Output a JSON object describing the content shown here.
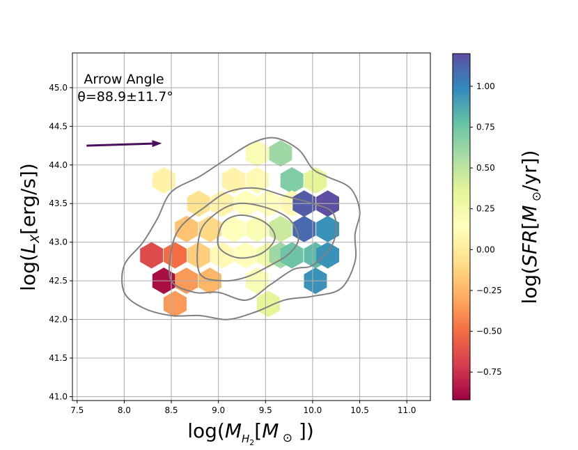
{
  "chart_data": {
    "type": "heatmap",
    "subtype": "hexbin",
    "xlabel": "log(M_{H_2}[M_⊙])",
    "ylabel": "log(L_X[erg/s])",
    "xlim": [
      7.45,
      11.25
    ],
    "ylim": [
      40.95,
      45.45
    ],
    "x_ticks": [
      "7.5",
      "8.0",
      "8.5",
      "9.0",
      "9.5",
      "10.0",
      "10.5",
      "11.0"
    ],
    "y_ticks": [
      "41.0",
      "41.5",
      "42.0",
      "42.5",
      "43.0",
      "43.5",
      "44.0",
      "44.5",
      "45.0"
    ],
    "grid": true,
    "annotation": {
      "line1": "Arrow Angle",
      "line2": "θ=88.9±11.7°"
    },
    "arrow": {
      "from": [
        7.6,
        44.25
      ],
      "to": [
        8.4,
        44.28
      ],
      "color": "#4a0f5c"
    },
    "colorbar": {
      "label": "log(SFR[M_⊙/yr])",
      "min": -0.92,
      "max": 1.2,
      "ticks": [
        "−0.75",
        "−0.50",
        "−0.25",
        "0.00",
        "0.25",
        "0.50",
        "0.75",
        "1.00"
      ],
      "tick_values": [
        -0.75,
        -0.5,
        -0.25,
        0.0,
        0.25,
        0.5,
        0.75,
        1.0
      ],
      "colormap": "Spectral"
    },
    "hex_cells": [
      {
        "x": 8.42,
        "y": 43.8,
        "v": 0.05
      },
      {
        "x": 8.29,
        "y": 42.83,
        "v": -0.65
      },
      {
        "x": 8.42,
        "y": 42.5,
        "v": -0.88
      },
      {
        "x": 8.54,
        "y": 42.83,
        "v": -0.5
      },
      {
        "x": 8.54,
        "y": 42.2,
        "v": -0.35
      },
      {
        "x": 8.66,
        "y": 42.5,
        "v": -0.35
      },
      {
        "x": 8.66,
        "y": 43.17,
        "v": -0.2
      },
      {
        "x": 8.79,
        "y": 42.83,
        "v": -0.15
      },
      {
        "x": 8.79,
        "y": 43.5,
        "v": -0.05
      },
      {
        "x": 8.91,
        "y": 43.17,
        "v": -0.1
      },
      {
        "x": 8.91,
        "y": 42.5,
        "v": -0.25
      },
      {
        "x": 9.04,
        "y": 43.5,
        "v": 0.05
      },
      {
        "x": 9.04,
        "y": 42.83,
        "v": 0.1
      },
      {
        "x": 9.16,
        "y": 43.17,
        "v": 0.15
      },
      {
        "x": 9.16,
        "y": 43.8,
        "v": 0.05
      },
      {
        "x": 9.29,
        "y": 42.83,
        "v": 0.15
      },
      {
        "x": 9.29,
        "y": 43.5,
        "v": 0.15
      },
      {
        "x": 9.41,
        "y": 43.17,
        "v": 0.2
      },
      {
        "x": 9.41,
        "y": 43.8,
        "v": 0.1
      },
      {
        "x": 9.41,
        "y": 42.5,
        "v": 0.2
      },
      {
        "x": 9.53,
        "y": 43.5,
        "v": 0.15
      },
      {
        "x": 9.53,
        "y": 42.83,
        "v": 0.25
      },
      {
        "x": 9.53,
        "y": 42.2,
        "v": 0.35
      },
      {
        "x": 9.41,
        "y": 44.15,
        "v": 0.2
      },
      {
        "x": 9.66,
        "y": 43.17,
        "v": 0.45
      },
      {
        "x": 9.66,
        "y": 42.83,
        "v": 0.6
      },
      {
        "x": 9.66,
        "y": 44.15,
        "v": 0.6
      },
      {
        "x": 9.78,
        "y": 43.8,
        "v": 0.7
      },
      {
        "x": 9.78,
        "y": 42.83,
        "v": 0.75
      },
      {
        "x": 9.78,
        "y": 43.5,
        "v": 0.1
      },
      {
        "x": 9.91,
        "y": 43.5,
        "v": 1.15
      },
      {
        "x": 9.91,
        "y": 43.17,
        "v": 1.1
      },
      {
        "x": 10.03,
        "y": 42.83,
        "v": 0.8
      },
      {
        "x": 10.03,
        "y": 42.5,
        "v": 0.95
      },
      {
        "x": 10.03,
        "y": 43.8,
        "v": 0.35
      },
      {
        "x": 10.16,
        "y": 43.5,
        "v": 1.2
      },
      {
        "x": 10.16,
        "y": 43.17,
        "v": 0.95
      },
      {
        "x": 10.16,
        "y": 42.83,
        "v": 0.95
      }
    ],
    "contours": [
      [
        [
          8.0,
          42.35
        ],
        [
          8.2,
          42.15
        ],
        [
          8.5,
          42.05
        ],
        [
          8.8,
          42.05
        ],
        [
          9.1,
          42.0
        ],
        [
          9.4,
          42.1
        ],
        [
          9.7,
          42.25
        ],
        [
          10.0,
          42.3
        ],
        [
          10.3,
          42.4
        ],
        [
          10.45,
          42.75
        ],
        [
          10.45,
          43.1
        ],
        [
          10.5,
          43.4
        ],
        [
          10.4,
          43.7
        ],
        [
          10.15,
          43.85
        ],
        [
          10.0,
          43.95
        ],
        [
          9.85,
          44.2
        ],
        [
          9.6,
          44.35
        ],
        [
          9.35,
          44.28
        ],
        [
          9.05,
          44.05
        ],
        [
          8.8,
          43.85
        ],
        [
          8.5,
          43.65
        ],
        [
          8.35,
          43.3
        ],
        [
          8.2,
          43.0
        ],
        [
          8.0,
          42.7
        ]
      ],
      [
        [
          8.5,
          42.5
        ],
        [
          8.75,
          42.35
        ],
        [
          9.0,
          42.35
        ],
        [
          9.3,
          42.25
        ],
        [
          9.55,
          42.45
        ],
        [
          9.8,
          42.65
        ],
        [
          10.0,
          42.7
        ],
        [
          10.2,
          42.95
        ],
        [
          10.25,
          43.2
        ],
        [
          10.2,
          43.4
        ],
        [
          10.0,
          43.5
        ],
        [
          9.7,
          43.6
        ],
        [
          9.4,
          43.7
        ],
        [
          9.1,
          43.65
        ],
        [
          8.85,
          43.45
        ],
        [
          8.6,
          43.2
        ],
        [
          8.5,
          42.9
        ]
      ],
      [
        [
          8.8,
          42.6
        ],
        [
          9.05,
          42.5
        ],
        [
          9.3,
          42.55
        ],
        [
          9.55,
          42.7
        ],
        [
          9.75,
          42.85
        ],
        [
          9.85,
          43.05
        ],
        [
          9.75,
          43.3
        ],
        [
          9.5,
          43.45
        ],
        [
          9.2,
          43.5
        ],
        [
          8.95,
          43.35
        ],
        [
          8.8,
          43.1
        ]
      ],
      [
        [
          9.0,
          42.95
        ],
        [
          9.2,
          42.8
        ],
        [
          9.45,
          42.85
        ],
        [
          9.6,
          43.05
        ],
        [
          9.5,
          43.25
        ],
        [
          9.25,
          43.35
        ],
        [
          9.05,
          43.25
        ]
      ]
    ]
  }
}
